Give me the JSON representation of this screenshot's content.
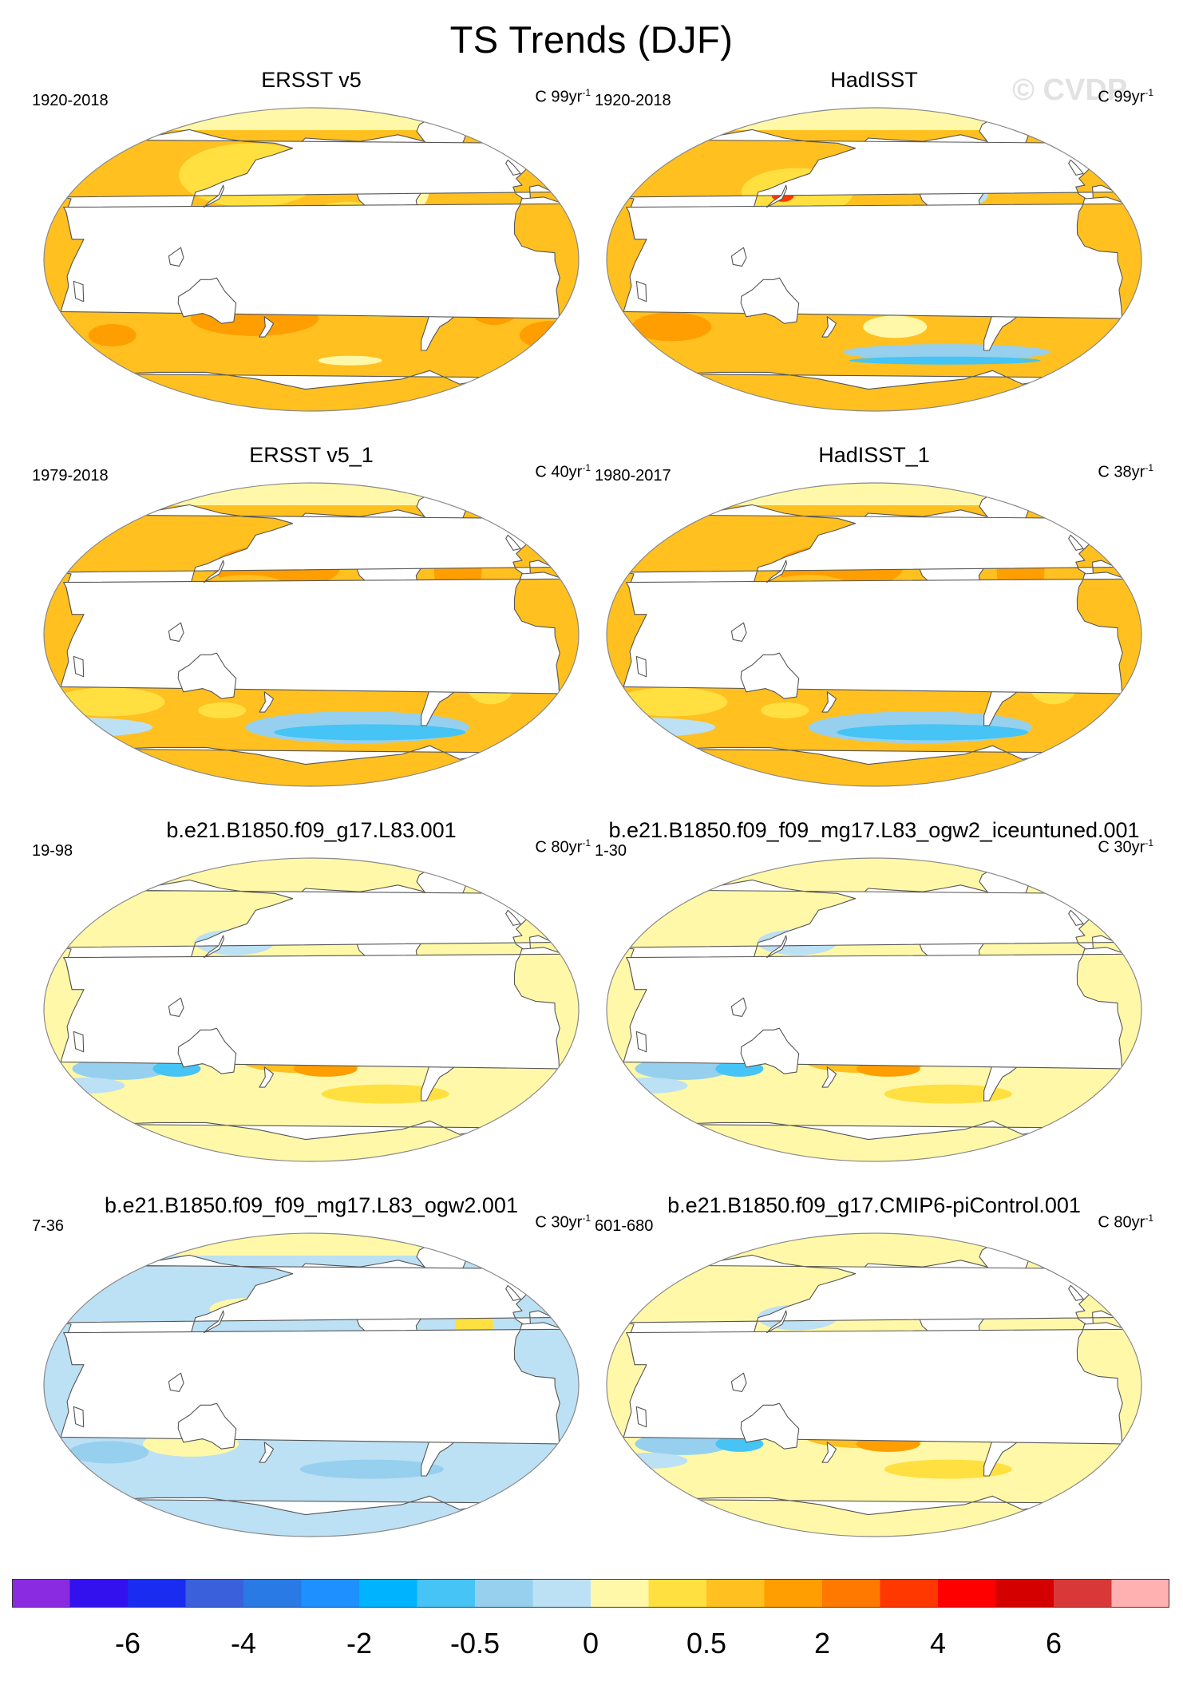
{
  "figure": {
    "title": "TS Trends (DJF)",
    "watermark": "© CVDP"
  },
  "panels": [
    {
      "title": "ERSST v5",
      "period": "1920-2018",
      "units_prefix": "C 99yr",
      "units_exp": "-1",
      "pattern": "warm"
    },
    {
      "title": "HadISST",
      "period": "1920-2018",
      "units_prefix": "C 99yr",
      "units_exp": "-1",
      "pattern": "warm-mixed"
    },
    {
      "title": "ERSST v5_1",
      "period": "1979-2018",
      "units_prefix": "C 40yr",
      "units_exp": "-1",
      "pattern": "lanina"
    },
    {
      "title": "HadISST_1",
      "period": "1980-2017",
      "units_prefix": "C 38yr",
      "units_exp": "-1",
      "pattern": "lanina"
    },
    {
      "title": "b.e21.B1850.f09_g17.L83.001",
      "period": "19-98",
      "units_prefix": "C 80yr",
      "units_exp": "-1",
      "pattern": "mixed"
    },
    {
      "title": "b.e21.B1850.f09_f09_mg17.L83_ogw2_iceuntuned.001",
      "period": "1-30",
      "units_prefix": "C 30yr",
      "units_exp": "-1",
      "pattern": "mixed"
    },
    {
      "title": "b.e21.B1850.f09_f09_mg17.L83_ogw2.001",
      "period": "7-36",
      "units_prefix": "C 30yr",
      "units_exp": "-1",
      "pattern": "cool-mixed"
    },
    {
      "title": "b.e21.B1850.f09_g17.CMIP6-piControl.001",
      "period": "601-680",
      "units_prefix": "C 80yr",
      "units_exp": "-1",
      "pattern": "mixed"
    }
  ],
  "colorbar": {
    "colors": [
      "#8a2be2",
      "#3311ee",
      "#1a2cf0",
      "#3a60dc",
      "#2a7ae6",
      "#1e90ff",
      "#00b3ff",
      "#45c4f5",
      "#96d0ee",
      "#bce0f4",
      "#fff8a8",
      "#ffe040",
      "#ffc020",
      "#ff9e00",
      "#ff7800",
      "#ff3800",
      "#ff0000",
      "#d40000",
      "#d83838",
      "#ffb0b0"
    ],
    "labels": [
      "-6",
      "-4",
      "-2",
      "-0.5",
      "0",
      "0.5",
      "2",
      "4",
      "6"
    ]
  },
  "palette": {
    "land": "#ffffff",
    "coast": "#555555",
    "frame": "#888888"
  }
}
